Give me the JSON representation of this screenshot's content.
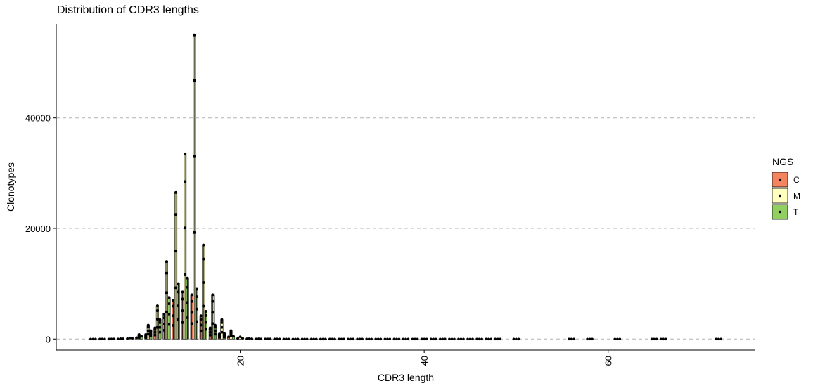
{
  "chart_data": {
    "type": "bar",
    "title": "Distribution of CDR3 lengths",
    "xlabel": "CDR3 length",
    "ylabel": "Clonotypes",
    "xlim": [
      0,
      76
    ],
    "ylim": [
      -2000,
      57000
    ],
    "x_ticks": [
      20,
      40,
      60
    ],
    "y_ticks": [
      0,
      20000,
      40000
    ],
    "grid": "horizontal dashed at y ticks",
    "legend": {
      "title": "NGS",
      "placement": "right",
      "entries": [
        {
          "label": "C",
          "color": "#f4845f"
        },
        {
          "label": "M",
          "color": "#ffffbf"
        },
        {
          "label": "T",
          "color": "#91cf60"
        }
      ]
    },
    "categories": [
      4,
      5,
      6,
      7,
      8,
      9,
      10,
      11,
      12,
      13,
      14,
      15,
      16,
      17,
      18,
      19,
      20,
      21,
      22,
      23,
      24,
      25,
      26,
      27,
      28,
      29,
      30,
      31,
      32,
      33,
      34,
      35,
      36,
      37,
      38,
      39,
      40,
      41,
      42,
      43,
      44,
      45,
      46,
      47,
      48,
      50,
      56,
      58,
      61,
      65,
      66,
      72
    ],
    "series": [
      {
        "name": "C",
        "color": "#f4845f",
        "values": [
          0,
          0,
          0,
          20,
          80,
          250,
          800,
          2000,
          4500,
          7000,
          8500,
          8000,
          4200,
          2000,
          900,
          400,
          120,
          40,
          15,
          8,
          5,
          3,
          2,
          2,
          1,
          1,
          1,
          1,
          0,
          0,
          0,
          0,
          0,
          0,
          0,
          0,
          0,
          0,
          0,
          0,
          0,
          0,
          0,
          0,
          0,
          0,
          0,
          0,
          0,
          0,
          0,
          0
        ]
      },
      {
        "name": "M",
        "color": "#ffffbf",
        "values": [
          0,
          5,
          10,
          60,
          200,
          800,
          2500,
          6000,
          14000,
          26500,
          33500,
          55000,
          17000,
          8000,
          3500,
          1500,
          400,
          100,
          40,
          20,
          10,
          5,
          3,
          2,
          2,
          1,
          1,
          1,
          1,
          0,
          0,
          0,
          0,
          0,
          0,
          0,
          0,
          0,
          0,
          0,
          0,
          0,
          0,
          0,
          0,
          0,
          0,
          0,
          0,
          0,
          0,
          0
        ]
      },
      {
        "name": "T",
        "color": "#91cf60",
        "values": [
          0,
          0,
          5,
          40,
          150,
          500,
          1500,
          3500,
          7500,
          10000,
          11000,
          9000,
          5000,
          2500,
          1000,
          500,
          150,
          50,
          20,
          10,
          5,
          3,
          2,
          1,
          1,
          1,
          1,
          0,
          0,
          0,
          0,
          0,
          0,
          0,
          0,
          0,
          0,
          0,
          0,
          0,
          0,
          0,
          0,
          0,
          0,
          0,
          0,
          0,
          0,
          0,
          0,
          0
        ]
      }
    ]
  }
}
